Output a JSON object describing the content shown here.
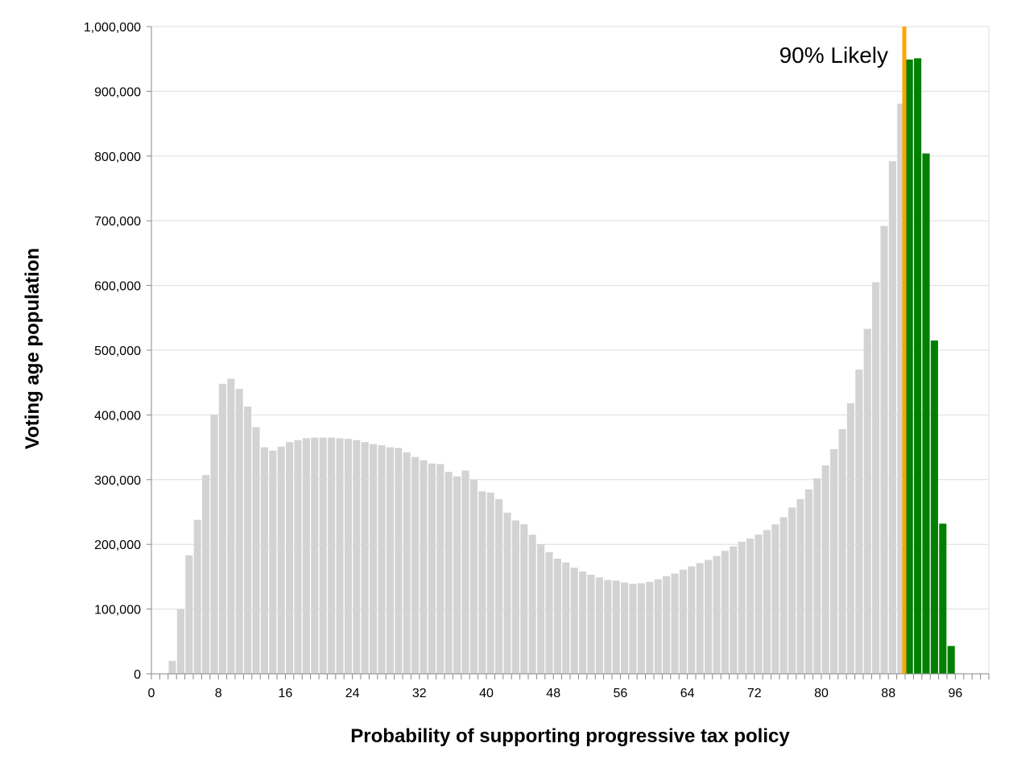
{
  "chart_data": {
    "type": "bar",
    "xlabel": "Probability of supporting progressive tax policy",
    "ylabel": "Voting age population",
    "xlim": [
      0,
      100
    ],
    "ylim": [
      0,
      1000000
    ],
    "x_ticks": [
      0,
      8,
      16,
      24,
      32,
      40,
      48,
      56,
      64,
      72,
      80,
      88,
      96
    ],
    "y_ticks": [
      0,
      100000,
      200000,
      300000,
      400000,
      500000,
      600000,
      700000,
      800000,
      900000,
      1000000
    ],
    "y_tick_labels": [
      "0",
      "100,000",
      "200,000",
      "300,000",
      "400,000",
      "500,000",
      "600,000",
      "700,000",
      "800,000",
      "900,000",
      "1,000,000"
    ],
    "grid": "horizontal",
    "threshold": {
      "value": 90,
      "label": "90% Likely",
      "color": "#FFA500"
    },
    "colors": {
      "below_threshold": "#D3D3D3",
      "above_threshold": "#008000"
    },
    "x": [
      0,
      1,
      2,
      3,
      4,
      5,
      6,
      7,
      8,
      9,
      10,
      11,
      12,
      13,
      14,
      15,
      16,
      17,
      18,
      19,
      20,
      21,
      22,
      23,
      24,
      25,
      26,
      27,
      28,
      29,
      30,
      31,
      32,
      33,
      34,
      35,
      36,
      37,
      38,
      39,
      40,
      41,
      42,
      43,
      44,
      45,
      46,
      47,
      48,
      49,
      50,
      51,
      52,
      53,
      54,
      55,
      56,
      57,
      58,
      59,
      60,
      61,
      62,
      63,
      64,
      65,
      66,
      67,
      68,
      69,
      70,
      71,
      72,
      73,
      74,
      75,
      76,
      77,
      78,
      79,
      80,
      81,
      82,
      83,
      84,
      85,
      86,
      87,
      88,
      89,
      90,
      91,
      92,
      93,
      94,
      95,
      96,
      97,
      98,
      99
    ],
    "values": [
      0,
      0,
      20000,
      100000,
      183000,
      238000,
      307000,
      400000,
      448000,
      456000,
      440000,
      413000,
      381000,
      350000,
      345000,
      351000,
      358000,
      361000,
      364000,
      365000,
      365000,
      365000,
      364000,
      363000,
      361000,
      358000,
      355000,
      353000,
      350000,
      349000,
      342000,
      335000,
      330000,
      325000,
      324000,
      312000,
      305000,
      314000,
      300000,
      282000,
      280000,
      270000,
      249000,
      237000,
      231000,
      215000,
      200000,
      188000,
      178000,
      172000,
      164000,
      158000,
      153000,
      149000,
      145000,
      144000,
      141000,
      139000,
      140000,
      142000,
      146000,
      151000,
      155000,
      161000,
      166000,
      171000,
      176000,
      182000,
      190000,
      197000,
      204000,
      209000,
      215000,
      222000,
      231000,
      242000,
      257000,
      270000,
      285000,
      302000,
      322000,
      347000,
      378000,
      418000,
      470000,
      533000,
      605000,
      692000,
      792000,
      881000,
      949000,
      951000,
      804000,
      515000,
      232000,
      43000,
      0,
      0,
      0,
      0
    ]
  }
}
